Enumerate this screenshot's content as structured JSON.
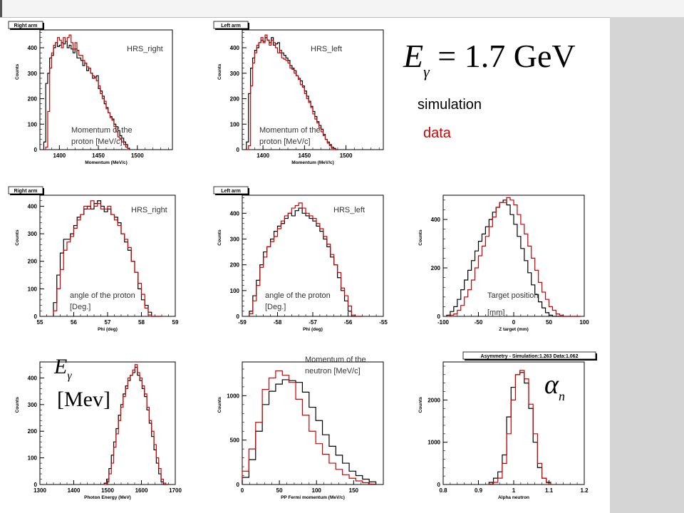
{
  "header": {
    "sim_label": "simulation",
    "data_label": "data",
    "energy_formula": "Eγ = 1.7 GeV"
  },
  "colors": {
    "simulation": "#000000",
    "data": "#cc0000"
  },
  "chart_data": [
    {
      "type": "histogram",
      "title_box": "Right arm",
      "xlabel": "Momentum (MeV/c)",
      "ylabel": "Counts",
      "xlim": [
        1375,
        1545
      ],
      "ylim": [
        0,
        470
      ],
      "xticks": [
        1400,
        1450,
        1500
      ],
      "yticks": [
        0,
        100,
        200,
        300,
        400
      ],
      "ann": [
        {
          "t": "HRS_right"
        },
        {
          "t": "Momentum of the"
        },
        {
          "t": "proton [MeV/c]"
        }
      ],
      "series": [
        {
          "name": "simulation",
          "color": "#000000",
          "x0": 1380,
          "dx": 2.5,
          "values": [
            30,
            260,
            300,
            360,
            370,
            400,
            420,
            405,
            410,
            420,
            415,
            425,
            400,
            410,
            395,
            380,
            395,
            360,
            360,
            350,
            330,
            340,
            310,
            320,
            300,
            280,
            285,
            290,
            240,
            230,
            210,
            180,
            165,
            145,
            130,
            120,
            100,
            90,
            75,
            55,
            45,
            30,
            20,
            5
          ]
        },
        {
          "name": "data",
          "color": "#cc0000",
          "x0": 1380,
          "dx": 2.5,
          "values": [
            0,
            10,
            150,
            320,
            380,
            410,
            420,
            440,
            430,
            400,
            440,
            425,
            440,
            450,
            420,
            395,
            420,
            390,
            370,
            370,
            350,
            340,
            325,
            320,
            300,
            290,
            280,
            270,
            250,
            220,
            200,
            190,
            160,
            145,
            125,
            115,
            90,
            70,
            50,
            40,
            30,
            20,
            10,
            5
          ]
        }
      ]
    },
    {
      "type": "histogram",
      "title_box": "Left arm",
      "xlabel": "Momentum (MeV/c)",
      "ylabel": "Counts",
      "xlim": [
        1375,
        1545
      ],
      "ylim": [
        0,
        470
      ],
      "xticks": [
        1400,
        1450,
        1500
      ],
      "yticks": [
        0,
        100,
        200,
        300,
        400
      ],
      "ann": [
        {
          "t": "HRS_left"
        },
        {
          "t": "Momentum of the"
        },
        {
          "t": "proton [MeV/c]"
        }
      ],
      "series": [
        {
          "name": "simulation",
          "color": "#000000",
          "x0": 1380,
          "dx": 2.5,
          "values": [
            30,
            220,
            320,
            360,
            390,
            400,
            420,
            430,
            425,
            440,
            430,
            420,
            440,
            410,
            415,
            420,
            380,
            380,
            370,
            360,
            350,
            330,
            320,
            310,
            290,
            280,
            270,
            250,
            230,
            210,
            190,
            170,
            150,
            130,
            110,
            95,
            80,
            60,
            40,
            30,
            20,
            10,
            5,
            0
          ]
        },
        {
          "name": "data",
          "color": "#cc0000",
          "x0": 1380,
          "dx": 2.5,
          "values": [
            0,
            15,
            250,
            340,
            380,
            410,
            420,
            440,
            420,
            450,
            430,
            410,
            430,
            420,
            400,
            380,
            390,
            360,
            355,
            350,
            340,
            320,
            315,
            300,
            290,
            275,
            255,
            245,
            220,
            200,
            185,
            165,
            140,
            120,
            105,
            85,
            70,
            55,
            40,
            25,
            15,
            5,
            0,
            0
          ]
        }
      ]
    },
    {
      "type": "histogram",
      "title_box": "Right arm",
      "xlabel": "Phi (deg)",
      "ylabel": "Counts",
      "xlim": [
        55,
        59
      ],
      "ylim": [
        0,
        440
      ],
      "xticks": [
        55,
        56,
        57,
        58,
        59
      ],
      "yticks": [
        0,
        100,
        200,
        300,
        400
      ],
      "ann": [
        {
          "t": "HRS_right"
        },
        {
          "t": "angle of the proton"
        },
        {
          "t": "[Deg.]"
        }
      ],
      "series": [
        {
          "name": "simulation",
          "color": "#000000",
          "x0": 55.4,
          "dx": 0.1,
          "values": [
            50,
            150,
            230,
            280,
            280,
            300,
            330,
            360,
            370,
            390,
            400,
            390,
            410,
            420,
            400,
            380,
            390,
            370,
            360,
            340,
            300,
            270,
            240,
            200,
            160,
            100,
            60,
            40,
            15,
            0,
            0,
            0
          ]
        },
        {
          "name": "data",
          "color": "#cc0000",
          "x0": 55.4,
          "dx": 0.1,
          "values": [
            20,
            100,
            170,
            240,
            270,
            290,
            320,
            350,
            370,
            400,
            390,
            420,
            400,
            410,
            390,
            390,
            400,
            370,
            350,
            330,
            300,
            280,
            250,
            200,
            160,
            120,
            80,
            30,
            5,
            0,
            0,
            0
          ]
        }
      ]
    },
    {
      "type": "histogram",
      "title_box": "Left arm",
      "xlabel": "Phi (deg)",
      "ylabel": "Counts",
      "xlim": [
        -59,
        -55
      ],
      "ylim": [
        0,
        470
      ],
      "xticks": [
        -59,
        -58,
        -57,
        -56,
        -55
      ],
      "yticks": [
        0,
        100,
        200,
        300,
        400
      ],
      "ann": [
        {
          "t": "HRS_left"
        },
        {
          "t": "angle of the proton"
        },
        {
          "t": "[Deg.]"
        }
      ],
      "series": [
        {
          "name": "simulation",
          "color": "#000000",
          "x0": -58.8,
          "dx": 0.1,
          "values": [
            20,
            80,
            140,
            200,
            250,
            270,
            300,
            330,
            350,
            360,
            380,
            400,
            390,
            410,
            420,
            400,
            390,
            380,
            370,
            350,
            330,
            300,
            270,
            230,
            200,
            150,
            100,
            60,
            20,
            0,
            0,
            0
          ]
        },
        {
          "name": "data",
          "color": "#cc0000",
          "x0": -58.8,
          "dx": 0.1,
          "values": [
            10,
            60,
            120,
            190,
            230,
            270,
            290,
            310,
            340,
            370,
            390,
            400,
            420,
            430,
            440,
            420,
            400,
            390,
            380,
            360,
            340,
            310,
            280,
            240,
            200,
            170,
            110,
            80,
            40,
            5,
            0,
            0
          ]
        }
      ]
    },
    {
      "type": "histogram",
      "title_box": "",
      "xlabel": "Z target (mm)",
      "ylabel": "Counts",
      "xlim": [
        -100,
        100
      ],
      "ylim": [
        0,
        500
      ],
      "xticks": [
        -100,
        -50,
        0,
        50,
        100
      ],
      "yticks": [
        0,
        200,
        400
      ],
      "ann": [
        {
          "t": "Target position"
        },
        {
          "t": "[mm]"
        }
      ],
      "series": [
        {
          "name": "simulation",
          "color": "#000000",
          "x0": -95,
          "dx": 5,
          "values": [
            5,
            20,
            40,
            70,
            110,
            150,
            190,
            230,
            270,
            310,
            340,
            370,
            400,
            430,
            450,
            470,
            480,
            460,
            420,
            380,
            330,
            280,
            230,
            180,
            130,
            90,
            60,
            35,
            15,
            5,
            0,
            0,
            0,
            0,
            0,
            0,
            0,
            0
          ]
        },
        {
          "name": "data",
          "color": "#cc0000",
          "x0": -95,
          "dx": 5,
          "values": [
            0,
            5,
            10,
            25,
            45,
            80,
            110,
            150,
            200,
            250,
            290,
            330,
            370,
            410,
            450,
            470,
            470,
            490,
            480,
            460,
            420,
            380,
            340,
            290,
            240,
            190,
            140,
            100,
            70,
            40,
            25,
            10,
            5,
            0,
            0,
            0,
            0,
            0
          ]
        }
      ]
    },
    {
      "type": "histogram",
      "title_box": "",
      "xlabel": "Photon Energy (MeV)",
      "ylabel": "Counts",
      "xlim": [
        1300,
        1700
      ],
      "ylim": [
        0,
        460
      ],
      "xticks": [
        1300,
        1400,
        1500,
        1600,
        1700
      ],
      "yticks": [
        0,
        100,
        200,
        300,
        400
      ],
      "ann": [],
      "series": [
        {
          "name": "simulation",
          "color": "#000000",
          "x0": 1490,
          "dx": 7,
          "values": [
            5,
            20,
            60,
            110,
            160,
            210,
            260,
            300,
            340,
            370,
            390,
            410,
            420,
            440,
            410,
            390,
            360,
            330,
            280,
            230,
            180,
            130,
            80,
            40,
            10,
            0,
            0
          ]
        },
        {
          "name": "data",
          "color": "#cc0000",
          "x0": 1490,
          "dx": 7,
          "values": [
            0,
            10,
            40,
            80,
            140,
            190,
            240,
            290,
            330,
            360,
            400,
            410,
            430,
            450,
            420,
            400,
            370,
            340,
            290,
            240,
            200,
            150,
            100,
            60,
            20,
            5,
            0
          ]
        }
      ]
    },
    {
      "type": "histogram",
      "title_box": "",
      "xlabel": "PP Fermi momentum (MeV/c)",
      "ylabel": "Counts",
      "xlim": [
        0,
        190
      ],
      "ylim": [
        0,
        1380
      ],
      "xticks": [
        0,
        50,
        100,
        150
      ],
      "yticks": [
        0,
        500,
        1000
      ],
      "ann": [
        {
          "t": "Momentum of the"
        },
        {
          "t": "neutron [MeV/c]"
        }
      ],
      "series": [
        {
          "name": "simulation",
          "color": "#000000",
          "x0": 0,
          "dx": 9,
          "values": [
            80,
            280,
            600,
            900,
            1050,
            1130,
            1180,
            1170,
            1150,
            1040,
            870,
            720,
            560,
            430,
            330,
            240,
            150,
            100,
            60,
            30
          ]
        },
        {
          "name": "data",
          "color": "#cc0000",
          "x0": 0,
          "dx": 9,
          "values": [
            150,
            400,
            700,
            1070,
            1200,
            1280,
            1230,
            1150,
            960,
            780,
            600,
            460,
            340,
            240,
            170,
            110,
            70,
            40,
            20,
            5
          ]
        }
      ]
    },
    {
      "type": "histogram",
      "title_box": "Asymmetry - Simulation:1.263    Data:1.062",
      "xlabel": "Alpha neutron",
      "ylabel": "Counts",
      "xlim": [
        0.8,
        1.2
      ],
      "ylim": [
        0,
        2900
      ],
      "xticks": [
        0.8,
        0.9,
        1.0,
        1.1,
        1.2
      ],
      "yticks": [
        0,
        1000,
        2000
      ],
      "ann": [],
      "series": [
        {
          "name": "simulation",
          "color": "#000000",
          "x0": 0.93,
          "dx": 0.0125,
          "values": [
            50,
            150,
            300,
            700,
            1600,
            2300,
            2600,
            2650,
            2400,
            1800,
            1000,
            400,
            150,
            50
          ]
        },
        {
          "name": "data",
          "color": "#cc0000",
          "x0": 0.93,
          "dx": 0.0125,
          "values": [
            10,
            50,
            150,
            500,
            1200,
            2000,
            2600,
            2700,
            2500,
            1900,
            1200,
            500,
            150,
            40
          ]
        }
      ]
    }
  ]
}
